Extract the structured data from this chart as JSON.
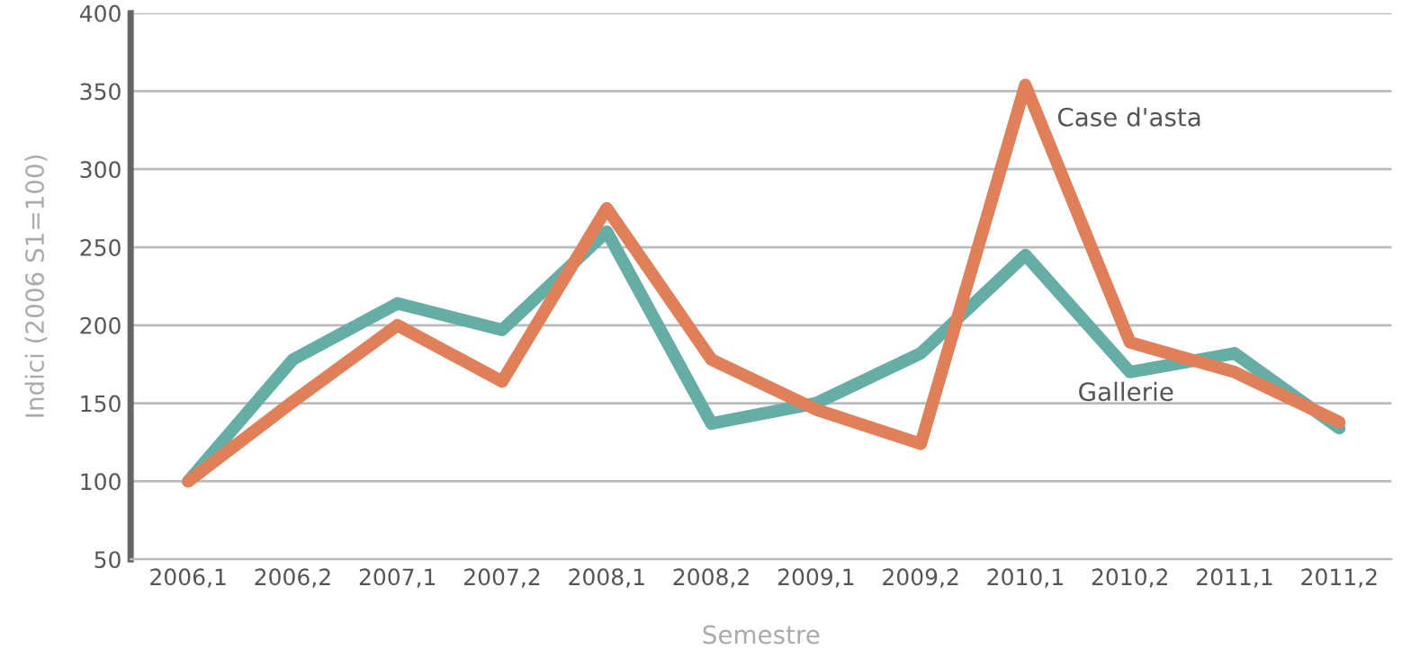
{
  "chart_data": {
    "type": "line",
    "xlabel": "Semestre",
    "ylabel": "Indici (2006 S1=100)",
    "categories": [
      "2006,1",
      "2006,2",
      "2007,1",
      "2007,2",
      "2008,1",
      "2008,2",
      "2009,1",
      "2009,2",
      "2010,1",
      "2010,2",
      "2011,1",
      "2011,2"
    ],
    "series": [
      {
        "name": "Gallerie",
        "color": "#66ada6",
        "values": [
          100,
          178,
          214,
          197,
          260,
          137,
          150,
          182,
          245,
          170,
          182,
          134
        ]
      },
      {
        "name": "Case d'asta",
        "color": "#e0805a",
        "values": [
          100,
          151,
          200,
          164,
          275,
          178,
          146,
          124,
          354,
          189,
          170,
          138
        ]
      }
    ],
    "ylim": [
      50,
      400
    ],
    "yticks": [
      50,
      100,
      150,
      200,
      250,
      300,
      350,
      400
    ],
    "grid": "y",
    "legend": false,
    "marker": "none",
    "line_style": "solid"
  }
}
